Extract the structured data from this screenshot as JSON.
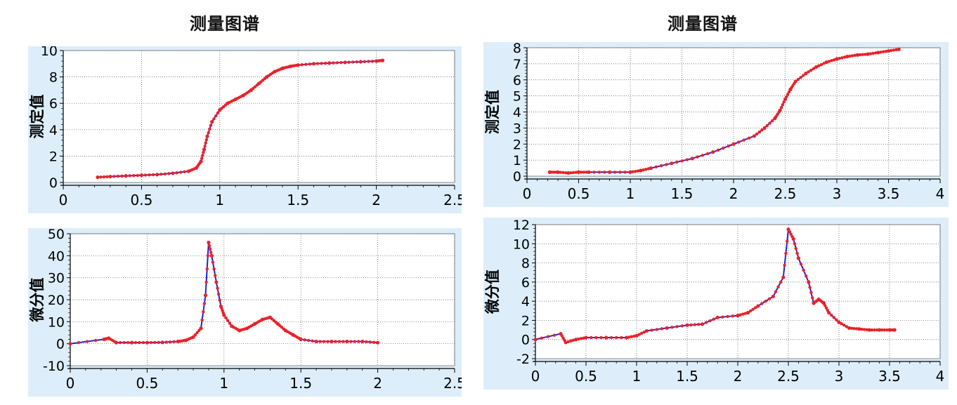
{
  "titles": {
    "left": "测量图谱",
    "right": "测量图谱"
  },
  "colors": {
    "panel_bg": "#ddeefa",
    "line": "#1f1fdc",
    "marker": "#e8222a",
    "grid": "#555555",
    "frame": "#000000"
  },
  "chart_data": [
    {
      "id": "left-measured",
      "type": "line",
      "title": "",
      "xlabel": "",
      "ylabel": "测定值",
      "xlim": [
        0,
        2.5
      ],
      "ylim": [
        0,
        10
      ],
      "xticks": [
        0,
        0.5,
        1,
        1.5,
        2,
        2.5
      ],
      "yticks": [
        0,
        2,
        4,
        6,
        8,
        10
      ],
      "grid": true,
      "series": [
        {
          "x": [
            0.22,
            0.3,
            0.4,
            0.5,
            0.6,
            0.7,
            0.8,
            0.85,
            0.88,
            0.9,
            0.92,
            0.95,
            1.0,
            1.05,
            1.1,
            1.15,
            1.2,
            1.25,
            1.3,
            1.35,
            1.4,
            1.45,
            1.5,
            1.6,
            1.7,
            1.8,
            1.9,
            2.0,
            2.04
          ],
          "y": [
            0.4,
            0.45,
            0.5,
            0.55,
            0.6,
            0.7,
            0.85,
            1.1,
            1.6,
            2.5,
            3.5,
            4.6,
            5.5,
            6.0,
            6.3,
            6.6,
            7.0,
            7.5,
            8.0,
            8.4,
            8.65,
            8.8,
            8.9,
            9.0,
            9.05,
            9.1,
            9.15,
            9.2,
            9.25
          ]
        }
      ]
    },
    {
      "id": "left-differential",
      "type": "line",
      "title": "",
      "xlabel": "",
      "ylabel": "微分值",
      "xlim": [
        0,
        2.5
      ],
      "ylim": [
        -10,
        50
      ],
      "xticks": [
        0,
        0.5,
        1,
        1.5,
        2,
        2.5
      ],
      "yticks": [
        -10,
        0,
        10,
        20,
        30,
        40,
        50
      ],
      "grid": true,
      "series": [
        {
          "x": [
            0,
            0.22,
            0.25,
            0.3,
            0.4,
            0.5,
            0.6,
            0.7,
            0.75,
            0.8,
            0.85,
            0.88,
            0.9,
            0.92,
            0.95,
            0.98,
            1.0,
            1.05,
            1.1,
            1.15,
            1.2,
            1.25,
            1.3,
            1.35,
            1.4,
            1.45,
            1.5,
            1.6,
            1.7,
            1.8,
            1.9,
            2.0
          ],
          "y": [
            0,
            2,
            2.5,
            0.5,
            0.5,
            0.5,
            0.6,
            1,
            1.5,
            3,
            7,
            22,
            46,
            40,
            28,
            17,
            13,
            8,
            6,
            7,
            9,
            11,
            12,
            9,
            6,
            4,
            2,
            1,
            1,
            1,
            1,
            0.5
          ]
        }
      ]
    },
    {
      "id": "right-measured",
      "type": "line",
      "title": "",
      "xlabel": "",
      "ylabel": "测定值",
      "xlim": [
        0,
        4
      ],
      "ylim": [
        0,
        8
      ],
      "xticks": [
        0,
        0.5,
        1,
        1.5,
        2,
        2.5,
        3,
        3.5,
        4
      ],
      "yticks": [
        0,
        1,
        2,
        3,
        4,
        5,
        6,
        7,
        8
      ],
      "grid": true,
      "series": [
        {
          "x": [
            0.22,
            0.3,
            0.4,
            0.5,
            0.6,
            0.8,
            1.0,
            1.1,
            1.2,
            1.4,
            1.6,
            1.8,
            2.0,
            2.2,
            2.3,
            2.4,
            2.45,
            2.5,
            2.55,
            2.6,
            2.7,
            2.8,
            2.9,
            3.0,
            3.1,
            3.2,
            3.3,
            3.4,
            3.5,
            3.6
          ],
          "y": [
            0.25,
            0.25,
            0.2,
            0.25,
            0.25,
            0.25,
            0.25,
            0.35,
            0.5,
            0.8,
            1.1,
            1.5,
            2.0,
            2.5,
            3.0,
            3.6,
            4.1,
            4.8,
            5.4,
            5.9,
            6.4,
            6.8,
            7.1,
            7.3,
            7.45,
            7.55,
            7.6,
            7.7,
            7.8,
            7.9
          ]
        }
      ]
    },
    {
      "id": "right-differential",
      "type": "line",
      "title": "",
      "xlabel": "",
      "ylabel": "微分值",
      "xlim": [
        0,
        4
      ],
      "ylim": [
        -2,
        12
      ],
      "xticks": [
        0,
        0.5,
        1,
        1.5,
        2,
        2.5,
        3,
        3.5,
        4
      ],
      "yticks": [
        -2,
        0,
        2,
        4,
        6,
        8,
        10,
        12
      ],
      "grid": true,
      "series": [
        {
          "x": [
            0,
            0.25,
            0.3,
            0.4,
            0.5,
            0.7,
            0.9,
            1.0,
            1.1,
            1.3,
            1.5,
            1.65,
            1.8,
            2.0,
            2.1,
            2.2,
            2.35,
            2.45,
            2.5,
            2.55,
            2.6,
            2.7,
            2.75,
            2.8,
            2.85,
            2.9,
            3.0,
            3.1,
            3.2,
            3.3,
            3.4,
            3.5,
            3.55
          ],
          "y": [
            0,
            0.6,
            -0.3,
            0,
            0.2,
            0.2,
            0.2,
            0.4,
            0.9,
            1.2,
            1.5,
            1.6,
            2.3,
            2.5,
            2.8,
            3.5,
            4.5,
            6.5,
            11.5,
            10.5,
            8.5,
            6.0,
            3.8,
            4.2,
            3.8,
            2.8,
            1.8,
            1.2,
            1.1,
            1.0,
            1.0,
            1.0,
            1.0
          ]
        }
      ]
    }
  ]
}
